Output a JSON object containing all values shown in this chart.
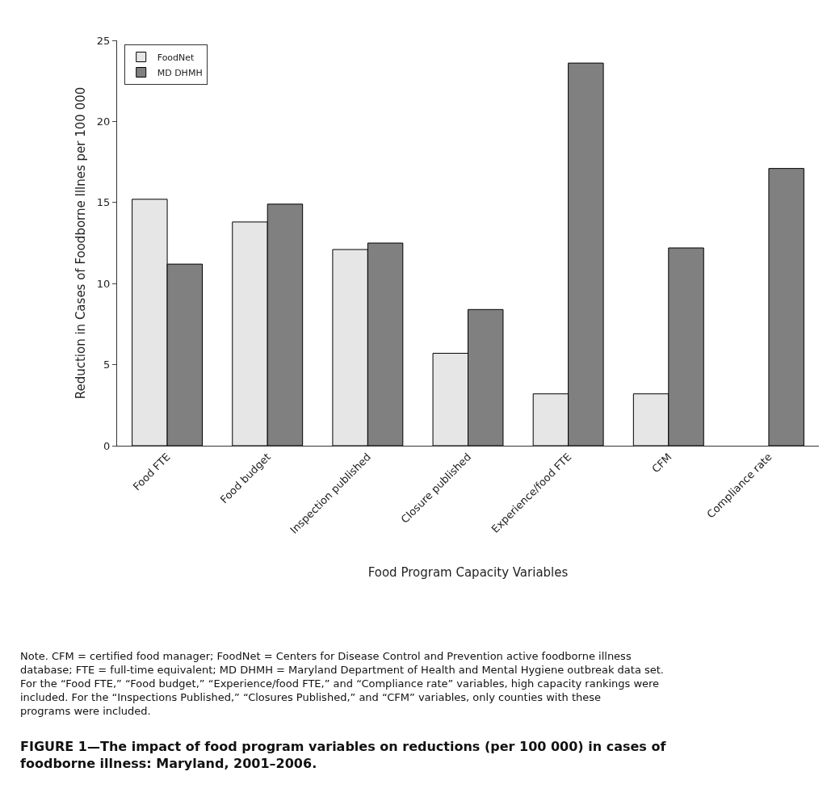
{
  "chart_data": {
    "type": "bar",
    "categories": [
      "Food FTE",
      "Food budget",
      "Inspection published",
      "Closure published",
      "Experience/food FTE",
      "CFM",
      "Compliance rate"
    ],
    "series": [
      {
        "name": "FoodNet",
        "color": "#e6e6e6",
        "values": [
          15.2,
          13.8,
          12.1,
          5.7,
          3.2,
          3.2,
          null
        ]
      },
      {
        "name": "MD DHMH",
        "color": "#808080",
        "values": [
          11.2,
          14.9,
          12.5,
          8.4,
          23.6,
          12.2,
          17.1
        ]
      }
    ],
    "xlabel": "Food Program Capacity Variables",
    "ylabel": "Reduction in Cases of Foodborne Illnes per 100 000",
    "ylim": [
      0,
      25
    ],
    "yticks": [
      0,
      5,
      10,
      15,
      20,
      25
    ],
    "grid": false,
    "legend": "top left",
    "annotations": [
      "Note. CFM = certified food manager; FoodNet = Centers for Disease Control and Prevention active foodborne illness database; FTE = full-time equivalent; MD DHMH = Maryland Department of Health and Mental Hygiene outbreak data set. For the “Food FTE,” “Food budget,” “Experience/food FTE,” and “Compliance rate” variables, high capacity rankings were included. For the “Inspections Published,” “Closures Published,” and “CFM” variables, only counties with these programs were included.",
      "FIGURE 1—The impact of food program variables on reductions (per 100 000) in cases of foodborne illness: Maryland, 2001–2006."
    ]
  }
}
